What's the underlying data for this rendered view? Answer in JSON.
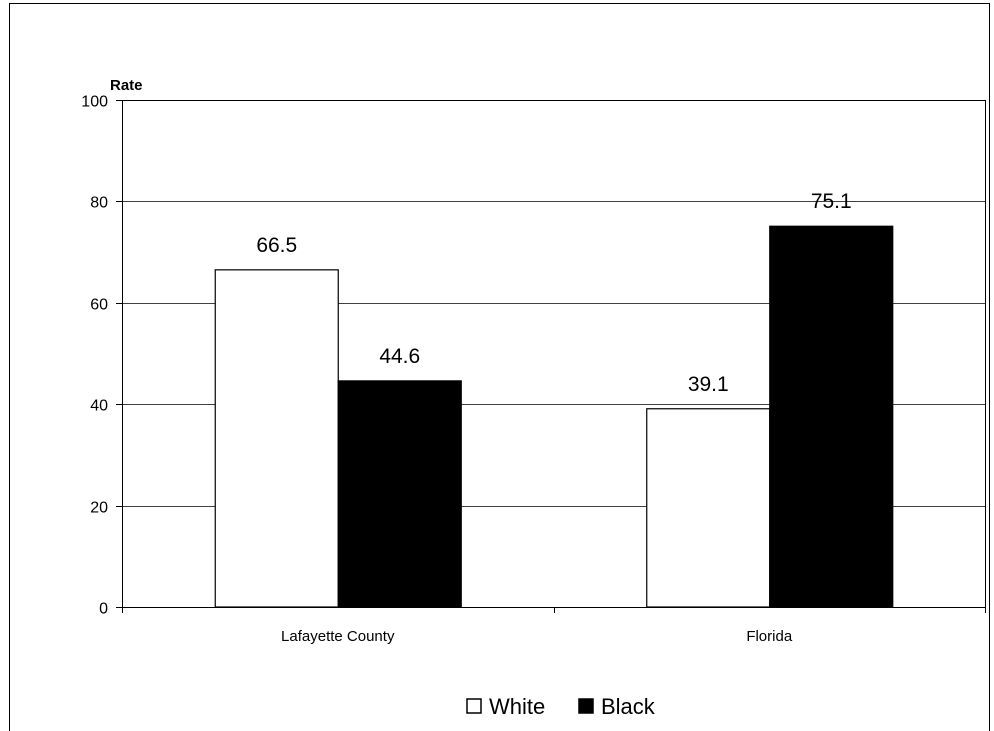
{
  "chart_data": {
    "type": "bar",
    "ylabel": "Rate",
    "xlabel": "",
    "ylim": [
      0,
      100
    ],
    "yticks": [
      0,
      20,
      40,
      60,
      80,
      100
    ],
    "categories": [
      "Lafayette County",
      "Florida"
    ],
    "series": [
      {
        "name": "White",
        "values": [
          66.5,
          39.1
        ],
        "color": "#ffffff"
      },
      {
        "name": "Black",
        "values": [
          44.6,
          75.1
        ],
        "color": "#000000"
      }
    ],
    "value_labels": [
      [
        "66.5",
        "39.1"
      ],
      [
        "44.6",
        "75.1"
      ]
    ],
    "grid": true,
    "legend_position": "bottom"
  }
}
